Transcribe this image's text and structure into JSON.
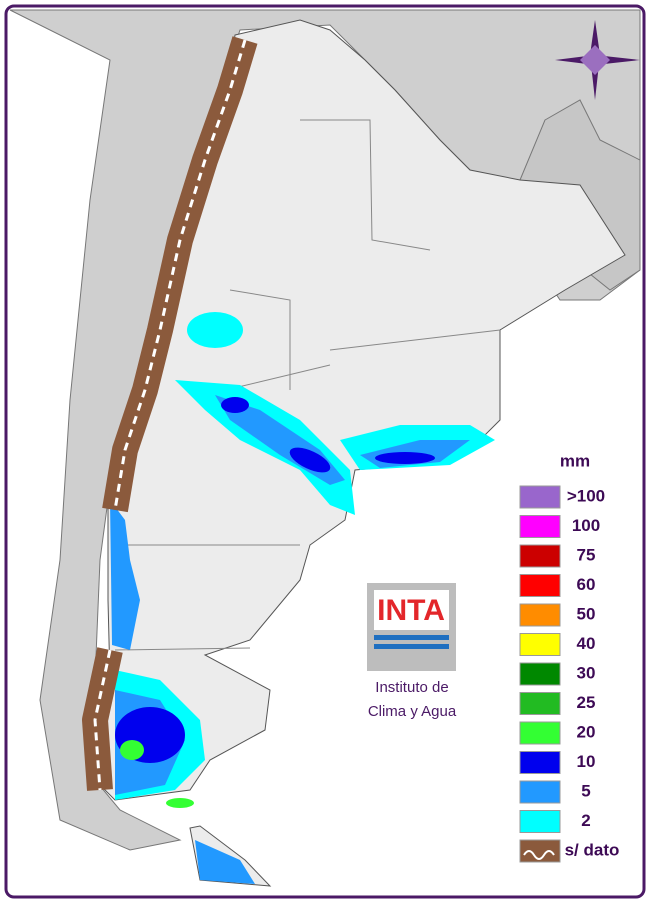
{
  "legend": {
    "unit": "mm",
    "items": [
      {
        "label": ">100",
        "color": "#9966cc"
      },
      {
        "label": "100",
        "color": "#ff00ff"
      },
      {
        "label": "75",
        "color": "#cc0000"
      },
      {
        "label": "60",
        "color": "#ff0000"
      },
      {
        "label": "50",
        "color": "#ff8c00"
      },
      {
        "label": "40",
        "color": "#ffff00"
      },
      {
        "label": "30",
        "color": "#008800"
      },
      {
        "label": "25",
        "color": "#22bb22"
      },
      {
        "label": "20",
        "color": "#33ff33"
      },
      {
        "label": "10",
        "color": "#0000ee"
      },
      {
        "label": "5",
        "color": "#2299ff"
      },
      {
        "label": "2",
        "color": "#00ffff"
      },
      {
        "label": "s/ dato",
        "color": "#8b5a3c"
      }
    ]
  },
  "logo": {
    "text": "INTA",
    "line1": "Instituto de",
    "line2": "Clima y Agua"
  }
}
